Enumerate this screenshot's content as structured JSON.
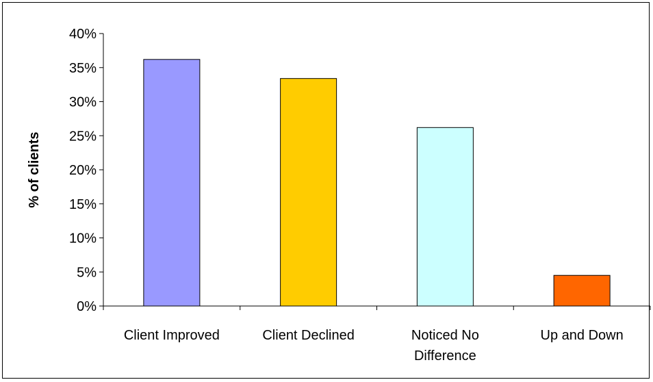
{
  "chart_data": {
    "type": "bar",
    "title": "",
    "xlabel": "",
    "ylabel": "% of clients",
    "categories": [
      [
        "Client Improved"
      ],
      [
        "Client Declined"
      ],
      [
        "Noticed No",
        "Difference"
      ],
      [
        "Up and Down"
      ]
    ],
    "values": [
      36.2,
      33.4,
      26.2,
      4.5
    ],
    "bar_colors": [
      "#9999FF",
      "#FFCC00",
      "#CCFFFF",
      "#FF6600"
    ],
    "ylim": [
      0,
      40
    ],
    "yticks": [
      0,
      5,
      10,
      15,
      20,
      25,
      30,
      35,
      40
    ],
    "ytick_format": "percent",
    "grid": false,
    "legend": "none"
  }
}
